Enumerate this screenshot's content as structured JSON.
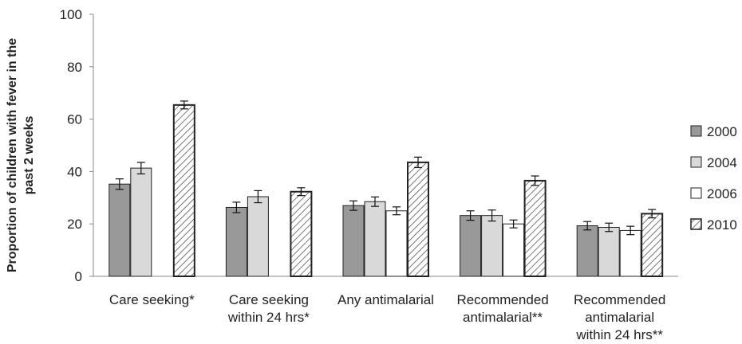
{
  "chart_data": {
    "type": "bar",
    "ylabel": "Proportion of children with fever in the past 2 weeks",
    "ylabel_lines": [
      "Proportion of children with fever in the",
      "past 2 weeks"
    ],
    "ylim": [
      0,
      100
    ],
    "yticks": [
      0,
      20,
      40,
      60,
      80,
      100
    ],
    "grid": false,
    "legend_position": "right",
    "categories": [
      "Care seeking*",
      "Care seeking within 24 hrs*",
      "Any antimalarial",
      "Recommended antimalarial**",
      "Recommended antimalarial within 24 hrs**"
    ],
    "category_lines": [
      [
        "Care seeking*"
      ],
      [
        "Care seeking",
        "within 24 hrs*"
      ],
      [
        "Any antimalarial"
      ],
      [
        "Recommended",
        "antimalarial**"
      ],
      [
        "Recommended",
        "antimalarial",
        "within 24 hrs**"
      ]
    ],
    "series": [
      {
        "name": "2000",
        "color": "#999999",
        "pattern": "solid",
        "values": [
          35.2,
          26.3,
          27.0,
          23.2,
          19.3
        ],
        "errors": [
          2.0,
          2.0,
          1.8,
          1.8,
          1.6
        ]
      },
      {
        "name": "2004",
        "color": "#d9d9d9",
        "pattern": "solid",
        "values": [
          41.3,
          30.4,
          28.5,
          23.2,
          18.7
        ],
        "errors": [
          2.2,
          2.3,
          1.8,
          2.1,
          1.6
        ]
      },
      {
        "name": "2006",
        "color": "#ffffff",
        "pattern": "solid",
        "values": [
          null,
          null,
          25.0,
          20.0,
          17.5
        ],
        "errors": [
          null,
          null,
          1.5,
          1.5,
          1.6
        ]
      },
      {
        "name": "2010",
        "color": "#ffffff",
        "pattern": "hatched",
        "values": [
          65.4,
          32.3,
          43.5,
          36.5,
          23.9
        ],
        "errors": [
          1.5,
          1.5,
          2.0,
          1.8,
          1.6
        ]
      }
    ]
  }
}
